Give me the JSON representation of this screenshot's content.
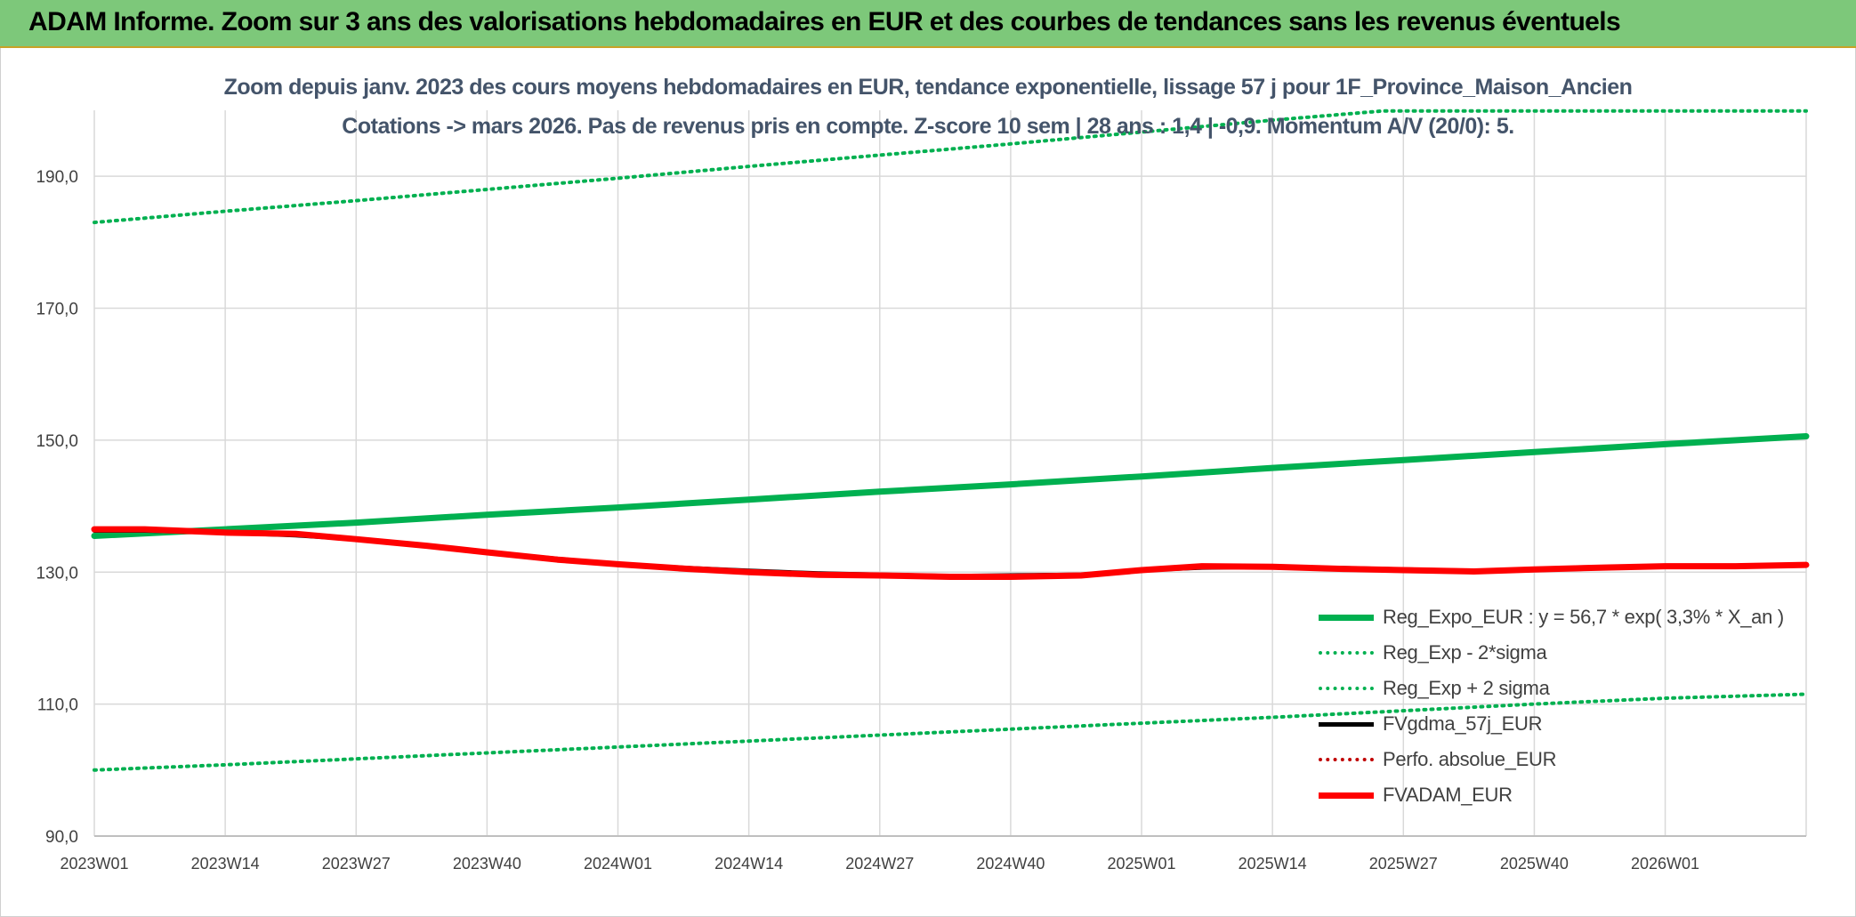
{
  "banner": {
    "title": "ADAM Informe. Zoom sur 3 ans des valorisations hebdomadaires en EUR et des courbes de tendances sans les revenus éventuels"
  },
  "colors": {
    "banner_bg": "#7dc87a",
    "trend_green": "#00b050",
    "price_black": "#000000",
    "adam_red": "#ff0000",
    "title_text": "#44546a",
    "grid": "#d9d9d9"
  },
  "chart_data": {
    "type": "line",
    "title": "Zoom depuis janv. 2023 des cours moyens hebdomadaires en EUR, tendance exponentielle, lissage 57 j pour 1F_Province_Maison_Ancien",
    "subtitle": "Cotations -> mars 2026. Pas de revenus pris en compte. Z-score 10 sem | 28 ans : 1,4 | -0,9. Momentum A/V (20/0): 5.",
    "xlabel": "",
    "ylabel": "",
    "x_ticks": [
      "2023W01",
      "2023W14",
      "2023W27",
      "2023W40",
      "2024W01",
      "2024W14",
      "2024W27",
      "2024W40",
      "2025W01",
      "2025W14",
      "2025W27",
      "2025W40",
      "2026W01"
    ],
    "y_ticks": [
      "90,0",
      "110,0",
      "130,0",
      "150,0",
      "170,0",
      "190,0"
    ],
    "ylim": [
      90,
      200
    ],
    "xlim_weeks": [
      0,
      170
    ],
    "grid": true,
    "legend_position": "bottom-right",
    "series": [
      {
        "name": "Reg_Expo_EUR : y = 56,7 * exp( 3,3% *  X_an )",
        "style": "solid-thick",
        "color": "#00b050",
        "points": [
          [
            0,
            135.5
          ],
          [
            13,
            136.5
          ],
          [
            26,
            137.5
          ],
          [
            39,
            138.7
          ],
          [
            52,
            139.8
          ],
          [
            65,
            141.0
          ],
          [
            78,
            142.2
          ],
          [
            91,
            143.3
          ],
          [
            104,
            144.5
          ],
          [
            117,
            145.8
          ],
          [
            130,
            147.0
          ],
          [
            143,
            148.2
          ],
          [
            156,
            149.4
          ],
          [
            170,
            150.6
          ]
        ]
      },
      {
        "name": "Reg_Exp - 2*sigma",
        "style": "dotted",
        "color": "#00b050",
        "points": [
          [
            0,
            100.0
          ],
          [
            13,
            100.8
          ],
          [
            26,
            101.7
          ],
          [
            39,
            102.6
          ],
          [
            52,
            103.5
          ],
          [
            65,
            104.4
          ],
          [
            78,
            105.3
          ],
          [
            91,
            106.2
          ],
          [
            104,
            107.1
          ],
          [
            117,
            108.0
          ],
          [
            130,
            109.0
          ],
          [
            143,
            110.0
          ],
          [
            156,
            110.9
          ],
          [
            170,
            111.5
          ]
        ]
      },
      {
        "name": "Reg_Exp + 2 sigma",
        "style": "dotted",
        "color": "#00b050",
        "points": [
          [
            0,
            183.0
          ],
          [
            13,
            184.7
          ],
          [
            26,
            186.3
          ],
          [
            39,
            188.0
          ],
          [
            52,
            189.7
          ],
          [
            65,
            191.5
          ],
          [
            78,
            193.2
          ],
          [
            91,
            194.9
          ],
          [
            104,
            196.7
          ],
          [
            117,
            198.5
          ],
          [
            128,
            199.9
          ],
          [
            170,
            199.9
          ]
        ]
      },
      {
        "name": "FVgdma_57j_EUR",
        "style": "solid",
        "color": "#000000",
        "points": [
          [
            0,
            136.3
          ],
          [
            5,
            136.3
          ],
          [
            13,
            136.0
          ],
          [
            20,
            135.6
          ],
          [
            26,
            135.0
          ],
          [
            33,
            134.0
          ],
          [
            39,
            133.0
          ],
          [
            46,
            132.0
          ],
          [
            52,
            131.2
          ],
          [
            59,
            130.6
          ],
          [
            65,
            130.2
          ],
          [
            72,
            129.8
          ],
          [
            78,
            129.6
          ],
          [
            85,
            129.4
          ],
          [
            91,
            129.5
          ],
          [
            98,
            129.6
          ],
          [
            104,
            130.3
          ],
          [
            110,
            130.7
          ],
          [
            117,
            130.8
          ],
          [
            124,
            130.6
          ],
          [
            130,
            130.4
          ],
          [
            137,
            130.2
          ],
          [
            143,
            130.3
          ],
          [
            150,
            130.7
          ],
          [
            156,
            130.9
          ],
          [
            163,
            130.9
          ],
          [
            170,
            131.1
          ]
        ]
      },
      {
        "name": "Perfo. absolue_EUR",
        "style": "dotted",
        "color": "#c00000",
        "points": []
      },
      {
        "name": "FVADAM_EUR",
        "style": "solid-thick",
        "color": "#ff0000",
        "points": [
          [
            0,
            136.5
          ],
          [
            5,
            136.5
          ],
          [
            13,
            136.0
          ],
          [
            20,
            135.8
          ],
          [
            26,
            135.0
          ],
          [
            33,
            134.0
          ],
          [
            39,
            133.0
          ],
          [
            46,
            131.9
          ],
          [
            52,
            131.2
          ],
          [
            59,
            130.5
          ],
          [
            65,
            130.0
          ],
          [
            72,
            129.6
          ],
          [
            78,
            129.5
          ],
          [
            85,
            129.3
          ],
          [
            91,
            129.3
          ],
          [
            98,
            129.5
          ],
          [
            104,
            130.3
          ],
          [
            110,
            130.9
          ],
          [
            117,
            130.8
          ],
          [
            124,
            130.5
          ],
          [
            130,
            130.3
          ],
          [
            137,
            130.1
          ],
          [
            143,
            130.4
          ],
          [
            150,
            130.7
          ],
          [
            156,
            130.9
          ],
          [
            163,
            130.9
          ],
          [
            170,
            131.1
          ]
        ]
      }
    ]
  }
}
